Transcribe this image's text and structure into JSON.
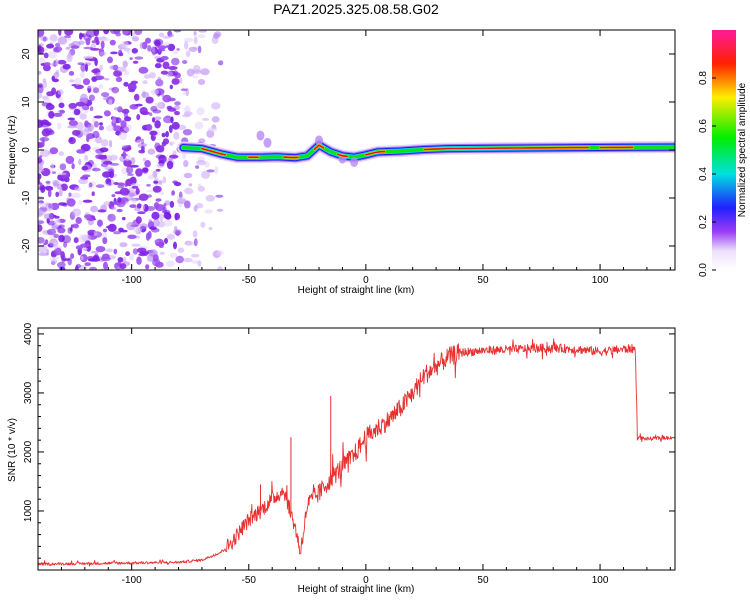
{
  "chart_data": [
    {
      "type": "heatmap",
      "title": "PAZ1.2025.325.08.58.G02",
      "xlabel": "Height of straight line (km)",
      "ylabel": "Frequency (Hz)",
      "xlim": [
        -140,
        132
      ],
      "ylim": [
        -25,
        25
      ],
      "xticks": [
        -100,
        -50,
        0,
        50,
        100
      ],
      "yticks": [
        -20,
        -10,
        0,
        10,
        20
      ],
      "colorbar": {
        "label": "Normalized spectral amplitude",
        "ticks": [
          0.0,
          0.2,
          0.4,
          0.6,
          0.8
        ],
        "tick_labels": [
          "0.0",
          "0.2",
          "0.4",
          "0.6",
          "0.8"
        ],
        "range": [
          0,
          1
        ],
        "colormap": "rainbow (white-violet-blue-cyan-green-yellow-red-magenta)"
      },
      "noise_region": {
        "x_range": [
          -140,
          -62
        ],
        "y_range": [
          -25,
          25
        ],
        "amplitude": "low (violet)"
      },
      "ridge": [
        [
          -78,
          0.5
        ],
        [
          -70,
          0.3
        ],
        [
          -62,
          -0.8
        ],
        [
          -55,
          -1.5
        ],
        [
          -45,
          -1.5
        ],
        [
          -38,
          -1.4
        ],
        [
          -30,
          -1.6
        ],
        [
          -25,
          -1.2
        ],
        [
          -20,
          1.0
        ],
        [
          -15,
          -0.4
        ],
        [
          -10,
          -1.2
        ],
        [
          -5,
          -1.5
        ],
        [
          0,
          -1.0
        ],
        [
          5,
          -0.4
        ],
        [
          15,
          -0.2
        ],
        [
          25,
          0.1
        ],
        [
          35,
          0.3
        ],
        [
          60,
          0.4
        ],
        [
          90,
          0.5
        ],
        [
          132,
          0.6
        ]
      ]
    },
    {
      "type": "line",
      "xlabel": "Height of straight line (km)",
      "ylabel": "SNR (10 * v/v)",
      "xlim": [
        -140,
        132
      ],
      "ylim": [
        0,
        4100
      ],
      "xticks": [
        -100,
        -50,
        0,
        50,
        100
      ],
      "yticks": [
        1000,
        2000,
        3000,
        4000
      ],
      "series": [
        {
          "name": "SNR",
          "color": "#e83030",
          "x": [
            -140,
            -120,
            -100,
            -80,
            -70,
            -62,
            -57,
            -53,
            -50,
            -45,
            -40,
            -35,
            -30,
            -28,
            -25,
            -20,
            -15,
            -10,
            -5,
            0,
            5,
            10,
            15,
            20,
            25,
            30,
            35,
            40,
            45,
            50,
            60,
            70,
            80,
            90,
            100,
            110,
            115,
            116,
            120,
            132
          ],
          "y": [
            100,
            110,
            120,
            130,
            170,
            300,
            480,
            700,
            850,
            1000,
            1200,
            1350,
            700,
            300,
            1100,
            1300,
            1550,
            1750,
            1950,
            2250,
            2400,
            2550,
            2750,
            3000,
            3300,
            3450,
            3600,
            3680,
            3700,
            3720,
            3730,
            3750,
            3760,
            3740,
            3700,
            3740,
            3750,
            2250,
            2220,
            2250
          ]
        }
      ],
      "spikes": [
        {
          "x": -32,
          "y": 2250
        },
        {
          "x": -15,
          "y": 2950
        },
        {
          "x": -45,
          "y": 1450
        }
      ]
    }
  ]
}
